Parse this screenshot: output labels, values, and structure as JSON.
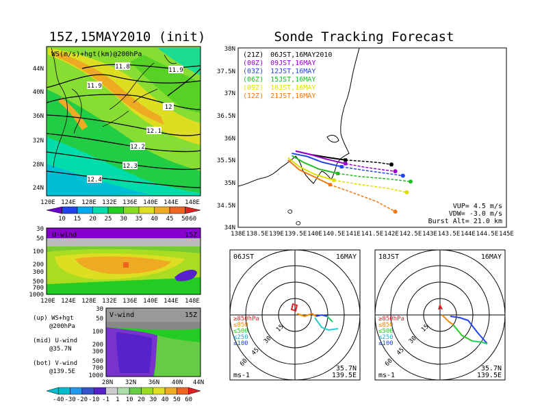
{
  "left_title": "15Z,15MAY2010 (init)",
  "right_title": "Sonde Tracking Forecast",
  "colors": {
    "ws_bar": [
      "#6a00cc",
      "#2244ee",
      "#00aaee",
      "#00ddaa",
      "#22cc22",
      "#88dd22",
      "#dddd22",
      "#eeaa22",
      "#ee6622",
      "#dd2222"
    ],
    "u_bar": [
      "#00bbcc",
      "#2299ee",
      "#3355cc",
      "#5522cc",
      "#cccccc",
      "#aaddaa",
      "#66cc44",
      "#99dd22",
      "#dddd22",
      "#eeaa22",
      "#ee6622",
      "#dd2222"
    ],
    "track": [
      "#000000",
      "#9900cc",
      "#2244ee",
      "#22bb22",
      "#dddd00",
      "#ee7711"
    ]
  },
  "map_panel": {
    "label": "WS(m/s)+hgt(km)@200hPa",
    "lat_ticks": [
      "44N",
      "40N",
      "36N",
      "32N",
      "28N",
      "24N"
    ],
    "lon_ticks": [
      "120E",
      "124E",
      "128E",
      "132E",
      "136E",
      "140E",
      "144E",
      "148E"
    ],
    "contour_labels": [
      "11.8",
      "11.9",
      "11.9",
      "12",
      "12.1",
      "12.2",
      "12.3",
      "12.4"
    ],
    "colorbar_ticks": [
      "10",
      "15",
      "20",
      "25",
      "30",
      "35",
      "40",
      "45",
      "50",
      "60"
    ]
  },
  "u_panel": {
    "label": "U-wind",
    "time": "15Z",
    "pressure_ticks": [
      "30",
      "50",
      "100",
      "200",
      "300",
      "500",
      "700",
      "1000"
    ],
    "lon_ticks": [
      "120E",
      "124E",
      "128E",
      "132E",
      "136E",
      "140E",
      "144E",
      "148E"
    ]
  },
  "v_panel": {
    "label": "V-wind",
    "time": "15Z",
    "pressure_ticks": [
      "30",
      "50",
      "100",
      "200",
      "300",
      "500",
      "700",
      "1000"
    ],
    "lat_ticks": [
      "28N",
      "32N",
      "36N",
      "40N",
      "44N"
    ],
    "colorbar_ticks": [
      "-40",
      "-30",
      "-20",
      "-10",
      "-1",
      "1",
      "10",
      "20",
      "30",
      "40",
      "50",
      "60"
    ]
  },
  "legend_notes": [
    {
      "line1": "(up) WS+hgt",
      "line2": "@200hPa"
    },
    {
      "line1": "(mid) U-wind",
      "line2": "@35.7N"
    },
    {
      "line1": "(bot) V-wind",
      "line2": "@139.5E"
    }
  ],
  "track_panel": {
    "lat_ticks": [
      "38N",
      "37.5N",
      "37N",
      "36.5N",
      "36N",
      "35.5N",
      "35N",
      "34.5N",
      "34N"
    ],
    "lon_ticks": [
      "138E",
      "138.5E",
      "139E",
      "139.5E",
      "140E",
      "140.5E",
      "141E",
      "141.5E",
      "142E",
      "142.5E",
      "143E",
      "143.5E",
      "144E",
      "144.5E",
      "145E"
    ],
    "legend": [
      {
        "utc": "(21Z)",
        "jst": "06JST,16MAY2010"
      },
      {
        "utc": "(00Z)",
        "jst": "09JST,16MAY"
      },
      {
        "utc": "(03Z)",
        "jst": "12JST,16MAY"
      },
      {
        "utc": "(06Z)",
        "jst": "15JST,16MAY"
      },
      {
        "utc": "(09Z)",
        "jst": "18JST,16MAY"
      },
      {
        "utc": "(12Z)",
        "jst": "21JST,16MAY"
      }
    ],
    "vup": "VUP= 4.5 m/s",
    "vdw": "VDW= -3.0 m/s",
    "burst": "Burst Alt= 21.0 km"
  },
  "hodographs": [
    {
      "time": "06JST",
      "date": "16MAY",
      "rings": [
        "15",
        "30",
        "45",
        "60"
      ],
      "levels": [
        "≥850hPa",
        "≤850",
        "≤500",
        "≤250",
        "≤100"
      ],
      "loc_lat": "35.7N",
      "loc_lon": "139.5E",
      "unit": "ms-1"
    },
    {
      "time": "18JST",
      "date": "16MAY",
      "rings": [
        "15",
        "30",
        "45",
        "60"
      ],
      "levels": [
        "≥850hPa",
        "≤850",
        "≤500",
        "≤250",
        "≤100"
      ],
      "loc_lat": "35.7N",
      "loc_lon": "139.5E",
      "unit": "ms-1"
    }
  ],
  "chart_data": [
    {
      "type": "line",
      "title": "Sonde Tracking Forecast",
      "xlim": [
        138,
        145
      ],
      "ylim": [
        34,
        38
      ],
      "series": [
        {
          "name": "(21Z) 06JST,16MAY2010",
          "x": [
            139.5,
            139.9,
            140.4,
            140.8,
            141.3,
            141.7,
            142.0
          ],
          "y": [
            35.7,
            35.62,
            35.55,
            35.5,
            35.47,
            35.44,
            35.4
          ]
        },
        {
          "name": "(00Z) 09JST,16MAY",
          "x": [
            139.5,
            139.9,
            140.3,
            140.8,
            141.3,
            141.8,
            142.1
          ],
          "y": [
            35.7,
            35.62,
            35.52,
            35.42,
            35.34,
            35.28,
            35.25
          ]
        },
        {
          "name": "(03Z) 12JST,16MAY",
          "x": [
            139.4,
            139.8,
            140.2,
            140.7,
            141.3,
            141.9,
            142.3
          ],
          "y": [
            35.65,
            35.58,
            35.45,
            35.35,
            35.27,
            35.2,
            35.15
          ]
        },
        {
          "name": "(06Z) 15JST,16MAY",
          "x": [
            139.4,
            139.7,
            140.1,
            140.6,
            141.2,
            141.9,
            142.5
          ],
          "y": [
            35.6,
            35.45,
            35.3,
            35.2,
            35.13,
            35.08,
            35.02
          ]
        },
        {
          "name": "(09Z) 18JST,16MAY",
          "x": [
            139.3,
            139.6,
            140.0,
            140.5,
            141.2,
            141.9,
            142.4
          ],
          "y": [
            35.55,
            35.35,
            35.18,
            35.05,
            34.95,
            34.87,
            34.78
          ]
        },
        {
          "name": "(12Z) 21JST,16MAY",
          "x": [
            139.3,
            139.6,
            140.0,
            140.4,
            140.9,
            141.6,
            142.1
          ],
          "y": [
            35.5,
            35.28,
            35.12,
            34.95,
            34.8,
            34.58,
            34.35
          ]
        }
      ]
    }
  ]
}
